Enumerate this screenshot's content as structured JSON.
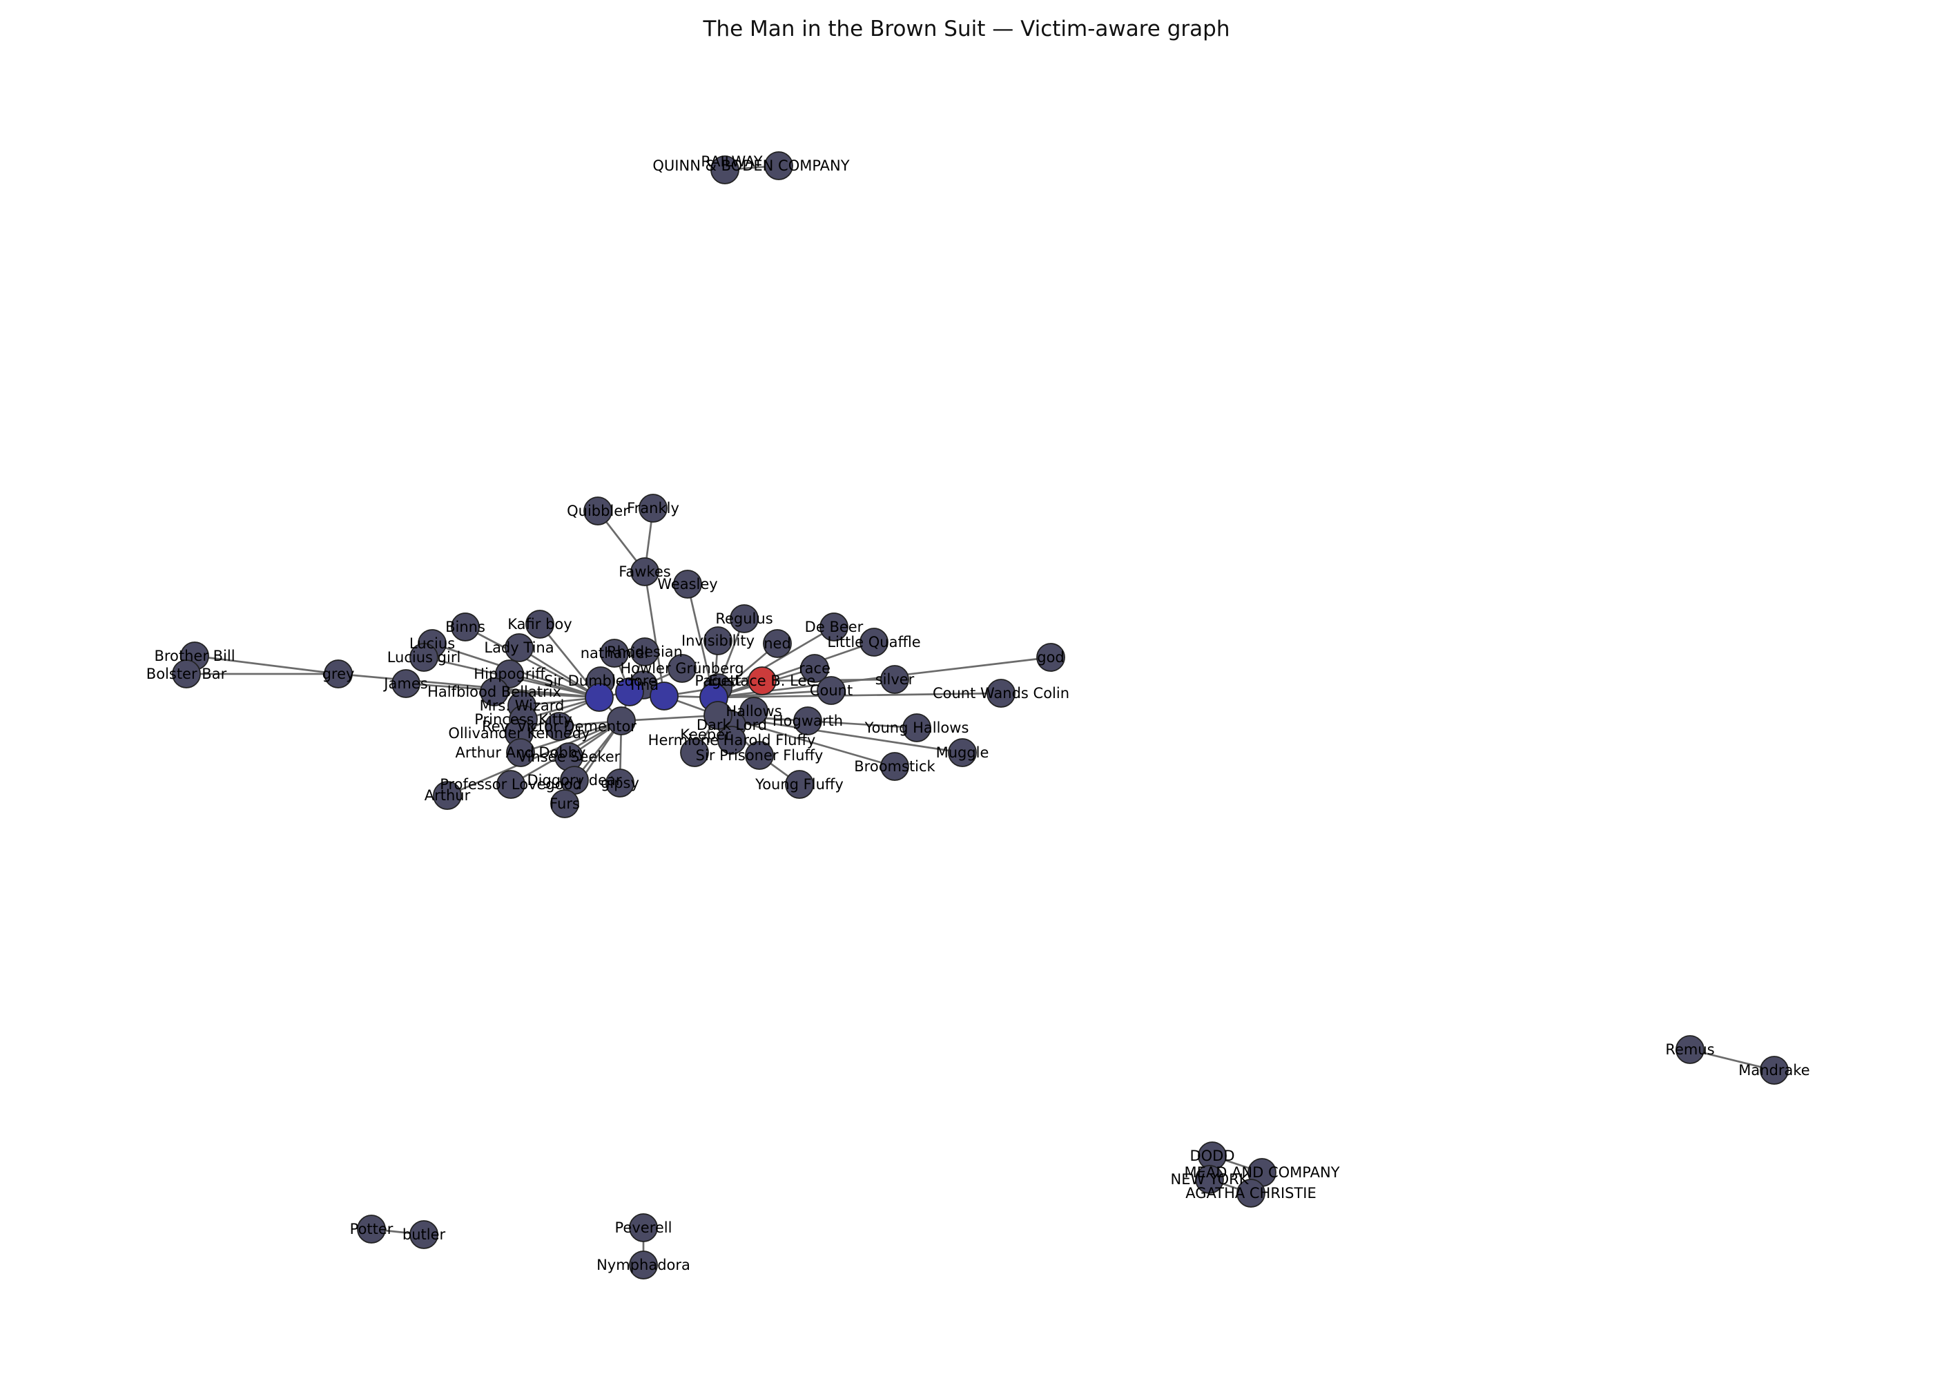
{
  "title": "The Man in the Brown Suit — Victim-aware graph",
  "colors": {
    "node": "#4a4a63",
    "victim": "#cc3b3b",
    "central": "#3a3aa0",
    "edge": "#6b6b6b",
    "background": "#ffffff"
  },
  "nodes": [
    {
      "id": "quinn",
      "label": "QUINN & BODEN COMPANY"
    },
    {
      "id": "railway",
      "label": "RAILWAY"
    },
    {
      "id": "quibbler",
      "label": "Quibbler"
    },
    {
      "id": "frankly",
      "label": "Frankly"
    },
    {
      "id": "fawkes",
      "label": "Fawkes"
    },
    {
      "id": "weasley",
      "label": "Weasley"
    },
    {
      "id": "regulus",
      "label": "Regulus"
    },
    {
      "id": "debeer",
      "label": "De Beer"
    },
    {
      "id": "littlequaffle",
      "label": "Little Quaffle"
    },
    {
      "id": "ned",
      "label": "ned"
    },
    {
      "id": "invisibility",
      "label": "Invisibility"
    },
    {
      "id": "rhodesian",
      "label": "Rhodesian"
    },
    {
      "id": "nathaniel",
      "label": "nathaniel"
    },
    {
      "id": "kafirboy",
      "label": "Kafir boy"
    },
    {
      "id": "binns",
      "label": "Binns"
    },
    {
      "id": "ladytina",
      "label": "Lady Tina"
    },
    {
      "id": "lucius",
      "label": "Lucius"
    },
    {
      "id": "luciusgirl",
      "label": "Lucius girl"
    },
    {
      "id": "brotherbill",
      "label": "Brother Bill"
    },
    {
      "id": "bolsterbar",
      "label": "Bolster Bar"
    },
    {
      "id": "grey",
      "label": "grey"
    },
    {
      "id": "james",
      "label": "James"
    },
    {
      "id": "hippogriff",
      "label": "Hippogriff"
    },
    {
      "id": "halfblood",
      "label": "Halfblood Bellatrix"
    },
    {
      "id": "sirdumbledore",
      "label": "Sir Dumbledore"
    },
    {
      "id": "tina",
      "label": "Tina"
    },
    {
      "id": "grunberg",
      "label": "Howler Grünberg"
    },
    {
      "id": "pagett",
      "label": "Pagett"
    },
    {
      "id": "eustace",
      "label": "Eustace B. Lee"
    },
    {
      "id": "race",
      "label": "race"
    },
    {
      "id": "silver",
      "label": "silver"
    },
    {
      "id": "god",
      "label": "god"
    },
    {
      "id": "count",
      "label": "Count"
    },
    {
      "id": "countwandscolin",
      "label": "Count Wands Colin"
    },
    {
      "id": "mrswizard",
      "label": "Mrs. Wizard"
    },
    {
      "id": "princess",
      "label": "Princess Kitty"
    },
    {
      "id": "ollivander",
      "label": "Ollivander Kennedy"
    },
    {
      "id": "rev",
      "label": "Rev. Victor Dementor"
    },
    {
      "id": "arthurand",
      "label": "Arthur And Dobby"
    },
    {
      "id": "vinsee",
      "label": "Vinsee Seeker"
    },
    {
      "id": "hallows",
      "label": "Hallows"
    },
    {
      "id": "hogwarth",
      "label": "Hogwarth"
    },
    {
      "id": "dark",
      "label": "Dark Lord"
    },
    {
      "id": "harold",
      "label": "Hermione Harold Fluffy"
    },
    {
      "id": "sirprisoner",
      "label": "Sir Prisoner Fluffy"
    },
    {
      "id": "younghallows",
      "label": "Young Hallows"
    },
    {
      "id": "muggle",
      "label": "Muggle"
    },
    {
      "id": "broomstick",
      "label": "Broomstick"
    },
    {
      "id": "youngfluffy",
      "label": "Young Fluffy"
    },
    {
      "id": "professor",
      "label": "Professor Lovegood"
    },
    {
      "id": "arthur",
      "label": "Arthur"
    },
    {
      "id": "diggory",
      "label": "Diggory dear"
    },
    {
      "id": "gipsy",
      "label": "gipsy"
    },
    {
      "id": "furs",
      "label": "Furs"
    },
    {
      "id": "keeper",
      "label": "Keeper"
    },
    {
      "id": "c1",
      "label": ""
    },
    {
      "id": "c2",
      "label": ""
    },
    {
      "id": "c3",
      "label": ""
    },
    {
      "id": "c4",
      "label": ""
    },
    {
      "id": "c5",
      "label": ""
    },
    {
      "id": "c6",
      "label": ""
    },
    {
      "id": "remus",
      "label": "Remus"
    },
    {
      "id": "mandrake",
      "label": "Mandrake"
    },
    {
      "id": "dodd",
      "label": "DODD"
    },
    {
      "id": "mead",
      "label": "MEAD AND COMPANY"
    },
    {
      "id": "newyork",
      "label": "NEW YORK"
    },
    {
      "id": "agatha",
      "label": "AGATHA CHRISTIE"
    },
    {
      "id": "potter",
      "label": "Potter"
    },
    {
      "id": "butler",
      "label": "butler"
    },
    {
      "id": "peverell",
      "label": "Peverell"
    },
    {
      "id": "nymphadora",
      "label": "Nymphadora"
    }
  ],
  "edges": [
    [
      "quinn",
      "railway"
    ],
    [
      "quibbler",
      "fawkes"
    ],
    [
      "frankly",
      "fawkes"
    ],
    [
      "fawkes",
      "c3"
    ],
    [
      "weasley",
      "c4"
    ],
    [
      "regulus",
      "c4"
    ],
    [
      "debeer",
      "c4"
    ],
    [
      "littlequaffle",
      "c4"
    ],
    [
      "ned",
      "c4"
    ],
    [
      "invisibility",
      "c4"
    ],
    [
      "rhodesian",
      "c2"
    ],
    [
      "nathaniel",
      "c2"
    ],
    [
      "kafirboy",
      "c1"
    ],
    [
      "binns",
      "c1"
    ],
    [
      "ladytina",
      "c1"
    ],
    [
      "lucius",
      "c1"
    ],
    [
      "luciusgirl",
      "c1"
    ],
    [
      "brotherbill",
      "grey"
    ],
    [
      "bolsterbar",
      "grey"
    ],
    [
      "grey",
      "c1"
    ],
    [
      "james",
      "c1"
    ],
    [
      "hippogriff",
      "c1"
    ],
    [
      "halfblood",
      "c1"
    ],
    [
      "sirdumbledore",
      "c1"
    ],
    [
      "tina",
      "c2"
    ],
    [
      "grunberg",
      "c2"
    ],
    [
      "pagett",
      "c3"
    ],
    [
      "eustace",
      "c4"
    ],
    [
      "race",
      "c4"
    ],
    [
      "silver",
      "eustace"
    ],
    [
      "god",
      "c4"
    ],
    [
      "count",
      "c4"
    ],
    [
      "countwandscolin",
      "c4"
    ],
    [
      "mrswizard",
      "c1"
    ],
    [
      "princess",
      "c1"
    ],
    [
      "ollivander",
      "c1"
    ],
    [
      "rev",
      "c5"
    ],
    [
      "arthurand",
      "c5"
    ],
    [
      "vinsee",
      "c5"
    ],
    [
      "hallows",
      "c6"
    ],
    [
      "hogwarth",
      "c6"
    ],
    [
      "dark",
      "c6"
    ],
    [
      "harold",
      "c6"
    ],
    [
      "sirprisoner",
      "c6"
    ],
    [
      "younghallows",
      "c6"
    ],
    [
      "muggle",
      "c6"
    ],
    [
      "broomstick",
      "c6"
    ],
    [
      "youngfluffy",
      "sirprisoner"
    ],
    [
      "professor",
      "c5"
    ],
    [
      "arthur",
      "c5"
    ],
    [
      "diggory",
      "c5"
    ],
    [
      "gipsy",
      "c5"
    ],
    [
      "furs",
      "c5"
    ],
    [
      "keeper",
      "c6"
    ],
    [
      "c1",
      "c2"
    ],
    [
      "c2",
      "c3"
    ],
    [
      "c3",
      "c4"
    ],
    [
      "c4",
      "c6"
    ],
    [
      "c5",
      "c6"
    ],
    [
      "c1",
      "c5"
    ],
    [
      "c2",
      "c5"
    ],
    [
      "c3",
      "c6"
    ],
    [
      "remus",
      "mandrake"
    ],
    [
      "dodd",
      "mead"
    ],
    [
      "dodd",
      "newyork"
    ],
    [
      "newyork",
      "agatha"
    ],
    [
      "mead",
      "agatha"
    ],
    [
      "potter",
      "butler"
    ],
    [
      "peverell",
      "nymphadora"
    ]
  ]
}
